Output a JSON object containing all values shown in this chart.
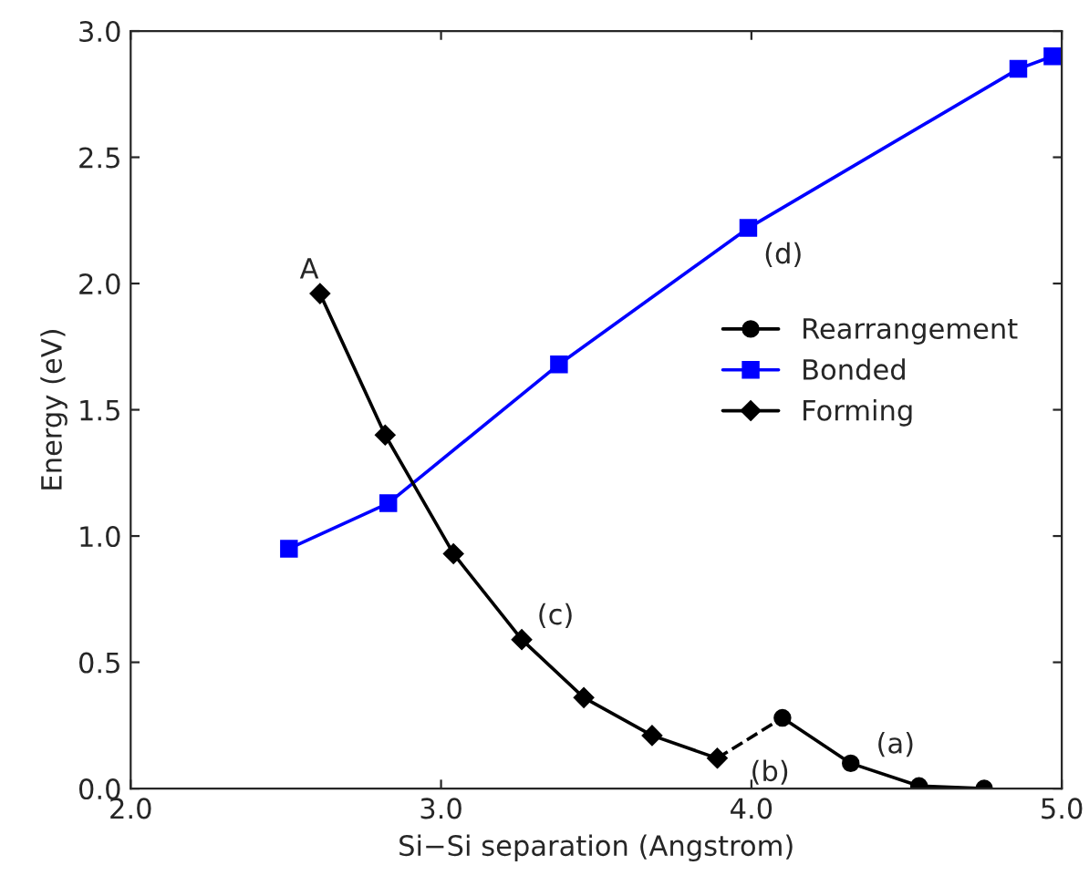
{
  "chart_data": {
    "type": "line",
    "xlabel": "Si−Si separation (Angstrom)",
    "ylabel": "Energy (eV)",
    "xlim": [
      2.0,
      5.0
    ],
    "ylim": [
      0.0,
      3.0
    ],
    "xticks": [
      {
        "value": 2.0,
        "label": "2.0"
      },
      {
        "value": 3.0,
        "label": "3.0"
      },
      {
        "value": 4.0,
        "label": "4.0"
      },
      {
        "value": 5.0,
        "label": "5.0"
      }
    ],
    "yticks": [
      {
        "value": 0.0,
        "label": "0.0"
      },
      {
        "value": 0.5,
        "label": "0.5"
      },
      {
        "value": 1.0,
        "label": "1.0"
      },
      {
        "value": 1.5,
        "label": "1.5"
      },
      {
        "value": 2.0,
        "label": "2.0"
      },
      {
        "value": 2.5,
        "label": "2.5"
      },
      {
        "value": 3.0,
        "label": "3.0"
      }
    ],
    "grid": false,
    "legend": "right",
    "series": [
      {
        "name": "Rearrangement",
        "color": "#000000",
        "marker": "circle",
        "x": [
          4.1,
          4.32,
          4.54,
          4.75
        ],
        "values": [
          0.28,
          0.1,
          0.01,
          0.0
        ]
      },
      {
        "name": "Bonded",
        "color": "#0000ff",
        "marker": "square",
        "x": [
          2.51,
          2.83,
          3.38,
          3.99,
          4.86,
          4.97
        ],
        "values": [
          0.95,
          1.13,
          1.68,
          2.22,
          2.85,
          2.9
        ]
      },
      {
        "name": "Forming",
        "color": "#000000",
        "marker": "diamond",
        "x": [
          2.61,
          2.82,
          3.04,
          3.26,
          3.46,
          3.68,
          3.89
        ],
        "values": [
          1.96,
          1.4,
          0.93,
          0.59,
          0.36,
          0.21,
          0.12
        ]
      },
      {
        "color": "#000000",
        "marker": "none",
        "line_style": "dashed",
        "x": [
          3.89,
          4.1
        ],
        "values": [
          0.12,
          0.28
        ]
      }
    ],
    "annotations": [
      {
        "text": "A",
        "x": 2.61,
        "y": 1.96
      },
      {
        "text": "(c)",
        "x": 3.26,
        "y": 0.59
      },
      {
        "text": "(d)",
        "x": 3.99,
        "y": 2.22
      },
      {
        "text": "(b)",
        "x": 3.89,
        "y": 0.12
      },
      {
        "text": "(a)",
        "x": 4.32,
        "y": 0.1
      }
    ]
  }
}
